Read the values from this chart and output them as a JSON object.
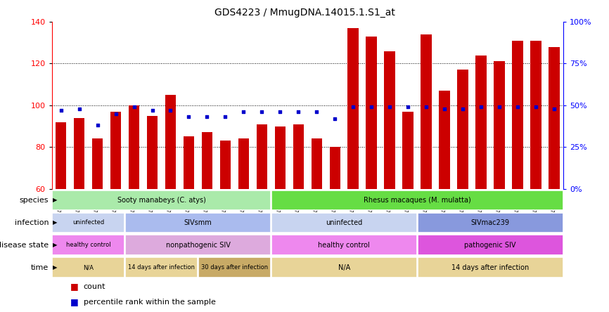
{
  "title": "GDS4223 / MmugDNA.14015.1.S1_at",
  "samples": [
    "GSM440057",
    "GSM440058",
    "GSM440059",
    "GSM440060",
    "GSM440061",
    "GSM440062",
    "GSM440063",
    "GSM440064",
    "GSM440065",
    "GSM440066",
    "GSM440067",
    "GSM440068",
    "GSM440069",
    "GSM440070",
    "GSM440071",
    "GSM440072",
    "GSM440073",
    "GSM440074",
    "GSM440075",
    "GSM440076",
    "GSM440077",
    "GSM440078",
    "GSM440079",
    "GSM440080",
    "GSM440081",
    "GSM440082",
    "GSM440083",
    "GSM440084"
  ],
  "bar_values": [
    92,
    94,
    84,
    97,
    100,
    95,
    105,
    85,
    87,
    83,
    84,
    91,
    90,
    91,
    84,
    80,
    137,
    133,
    126,
    97,
    134,
    107,
    117,
    124,
    121,
    131,
    131,
    128
  ],
  "dot_values": [
    47,
    48,
    38,
    45,
    49,
    47,
    47,
    43,
    43,
    43,
    46,
    46,
    46,
    46,
    46,
    42,
    49,
    49,
    49,
    49,
    49,
    48,
    48,
    49,
    49,
    49,
    49,
    48
  ],
  "ymin": 60,
  "ymax": 140,
  "yticks": [
    60,
    80,
    100,
    120,
    140
  ],
  "y2ticks": [
    0,
    25,
    50,
    75,
    100
  ],
  "y2tick_labels": [
    "0%",
    "25%",
    "50%",
    "75%",
    "100%"
  ],
  "bar_color": "#cc0000",
  "dot_color": "#0000cc",
  "bar_width": 0.6,
  "annotation_rows": [
    {
      "label": "species",
      "segments": [
        {
          "text": "Sooty manabeys (C. atys)",
          "start": 0,
          "end": 12,
          "color": "#aaeaaa"
        },
        {
          "text": "Rhesus macaques (M. mulatta)",
          "start": 12,
          "end": 28,
          "color": "#66dd44"
        }
      ]
    },
    {
      "label": "infection",
      "segments": [
        {
          "text": "uninfected",
          "start": 0,
          "end": 4,
          "color": "#c8d4f0"
        },
        {
          "text": "SIVsmm",
          "start": 4,
          "end": 12,
          "color": "#aabbee"
        },
        {
          "text": "uninfected",
          "start": 12,
          "end": 20,
          "color": "#c8d4f0"
        },
        {
          "text": "SIVmac239",
          "start": 20,
          "end": 28,
          "color": "#8899dd"
        }
      ]
    },
    {
      "label": "disease state",
      "segments": [
        {
          "text": "healthy control",
          "start": 0,
          "end": 4,
          "color": "#ee88ee"
        },
        {
          "text": "nonpathogenic SIV",
          "start": 4,
          "end": 12,
          "color": "#ddaadd"
        },
        {
          "text": "healthy control",
          "start": 12,
          "end": 20,
          "color": "#ee88ee"
        },
        {
          "text": "pathogenic SIV",
          "start": 20,
          "end": 28,
          "color": "#dd55dd"
        }
      ]
    },
    {
      "label": "time",
      "segments": [
        {
          "text": "N/A",
          "start": 0,
          "end": 4,
          "color": "#e8d498"
        },
        {
          "text": "14 days after infection",
          "start": 4,
          "end": 8,
          "color": "#e8d498"
        },
        {
          "text": "30 days after infection",
          "start": 8,
          "end": 12,
          "color": "#c8aa66"
        },
        {
          "text": "N/A",
          "start": 12,
          "end": 20,
          "color": "#e8d498"
        },
        {
          "text": "14 days after infection",
          "start": 20,
          "end": 28,
          "color": "#e8d498"
        }
      ]
    }
  ]
}
